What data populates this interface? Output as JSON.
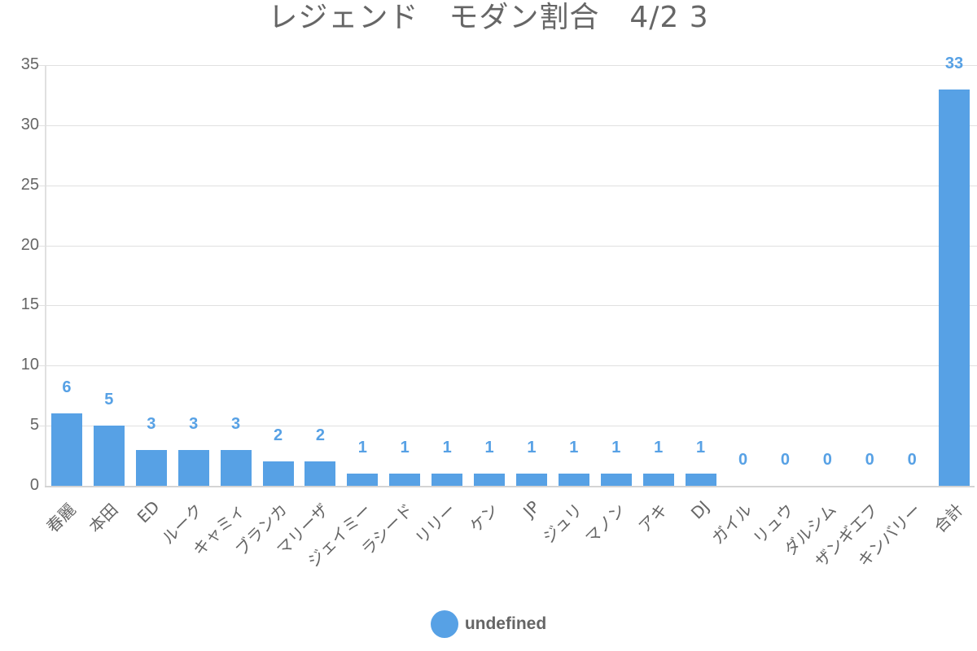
{
  "chart_data": {
    "type": "bar",
    "title": "レジェンド　モダン割合　4/2 3",
    "xlabel": "",
    "ylabel": "",
    "ylim": [
      0,
      35
    ],
    "yticks": [
      0,
      5,
      10,
      15,
      20,
      25,
      30,
      35
    ],
    "grid": true,
    "legend_position": "bottom",
    "categories": [
      "春麗",
      "本田",
      "ED",
      "ルーク",
      "キャミィ",
      "ブランカ",
      "マリーザ",
      "ジェイミー",
      "ラシード",
      "リリー",
      "ケン",
      "JP",
      "ジュリ",
      "マノン",
      "アキ",
      "DJ",
      "ガイル",
      "リュウ",
      "ダルシム",
      "ザンギエフ",
      "キンバリー",
      "合計"
    ],
    "series": [
      {
        "name": "undefined",
        "color": "#57a1e5",
        "values": [
          6,
          5,
          3,
          3,
          3,
          2,
          2,
          1,
          1,
          1,
          1,
          1,
          1,
          1,
          1,
          1,
          0,
          0,
          0,
          0,
          0,
          33
        ]
      }
    ],
    "data_labels": true
  },
  "legend": {
    "label": "undefined",
    "color": "#57a1e5"
  }
}
